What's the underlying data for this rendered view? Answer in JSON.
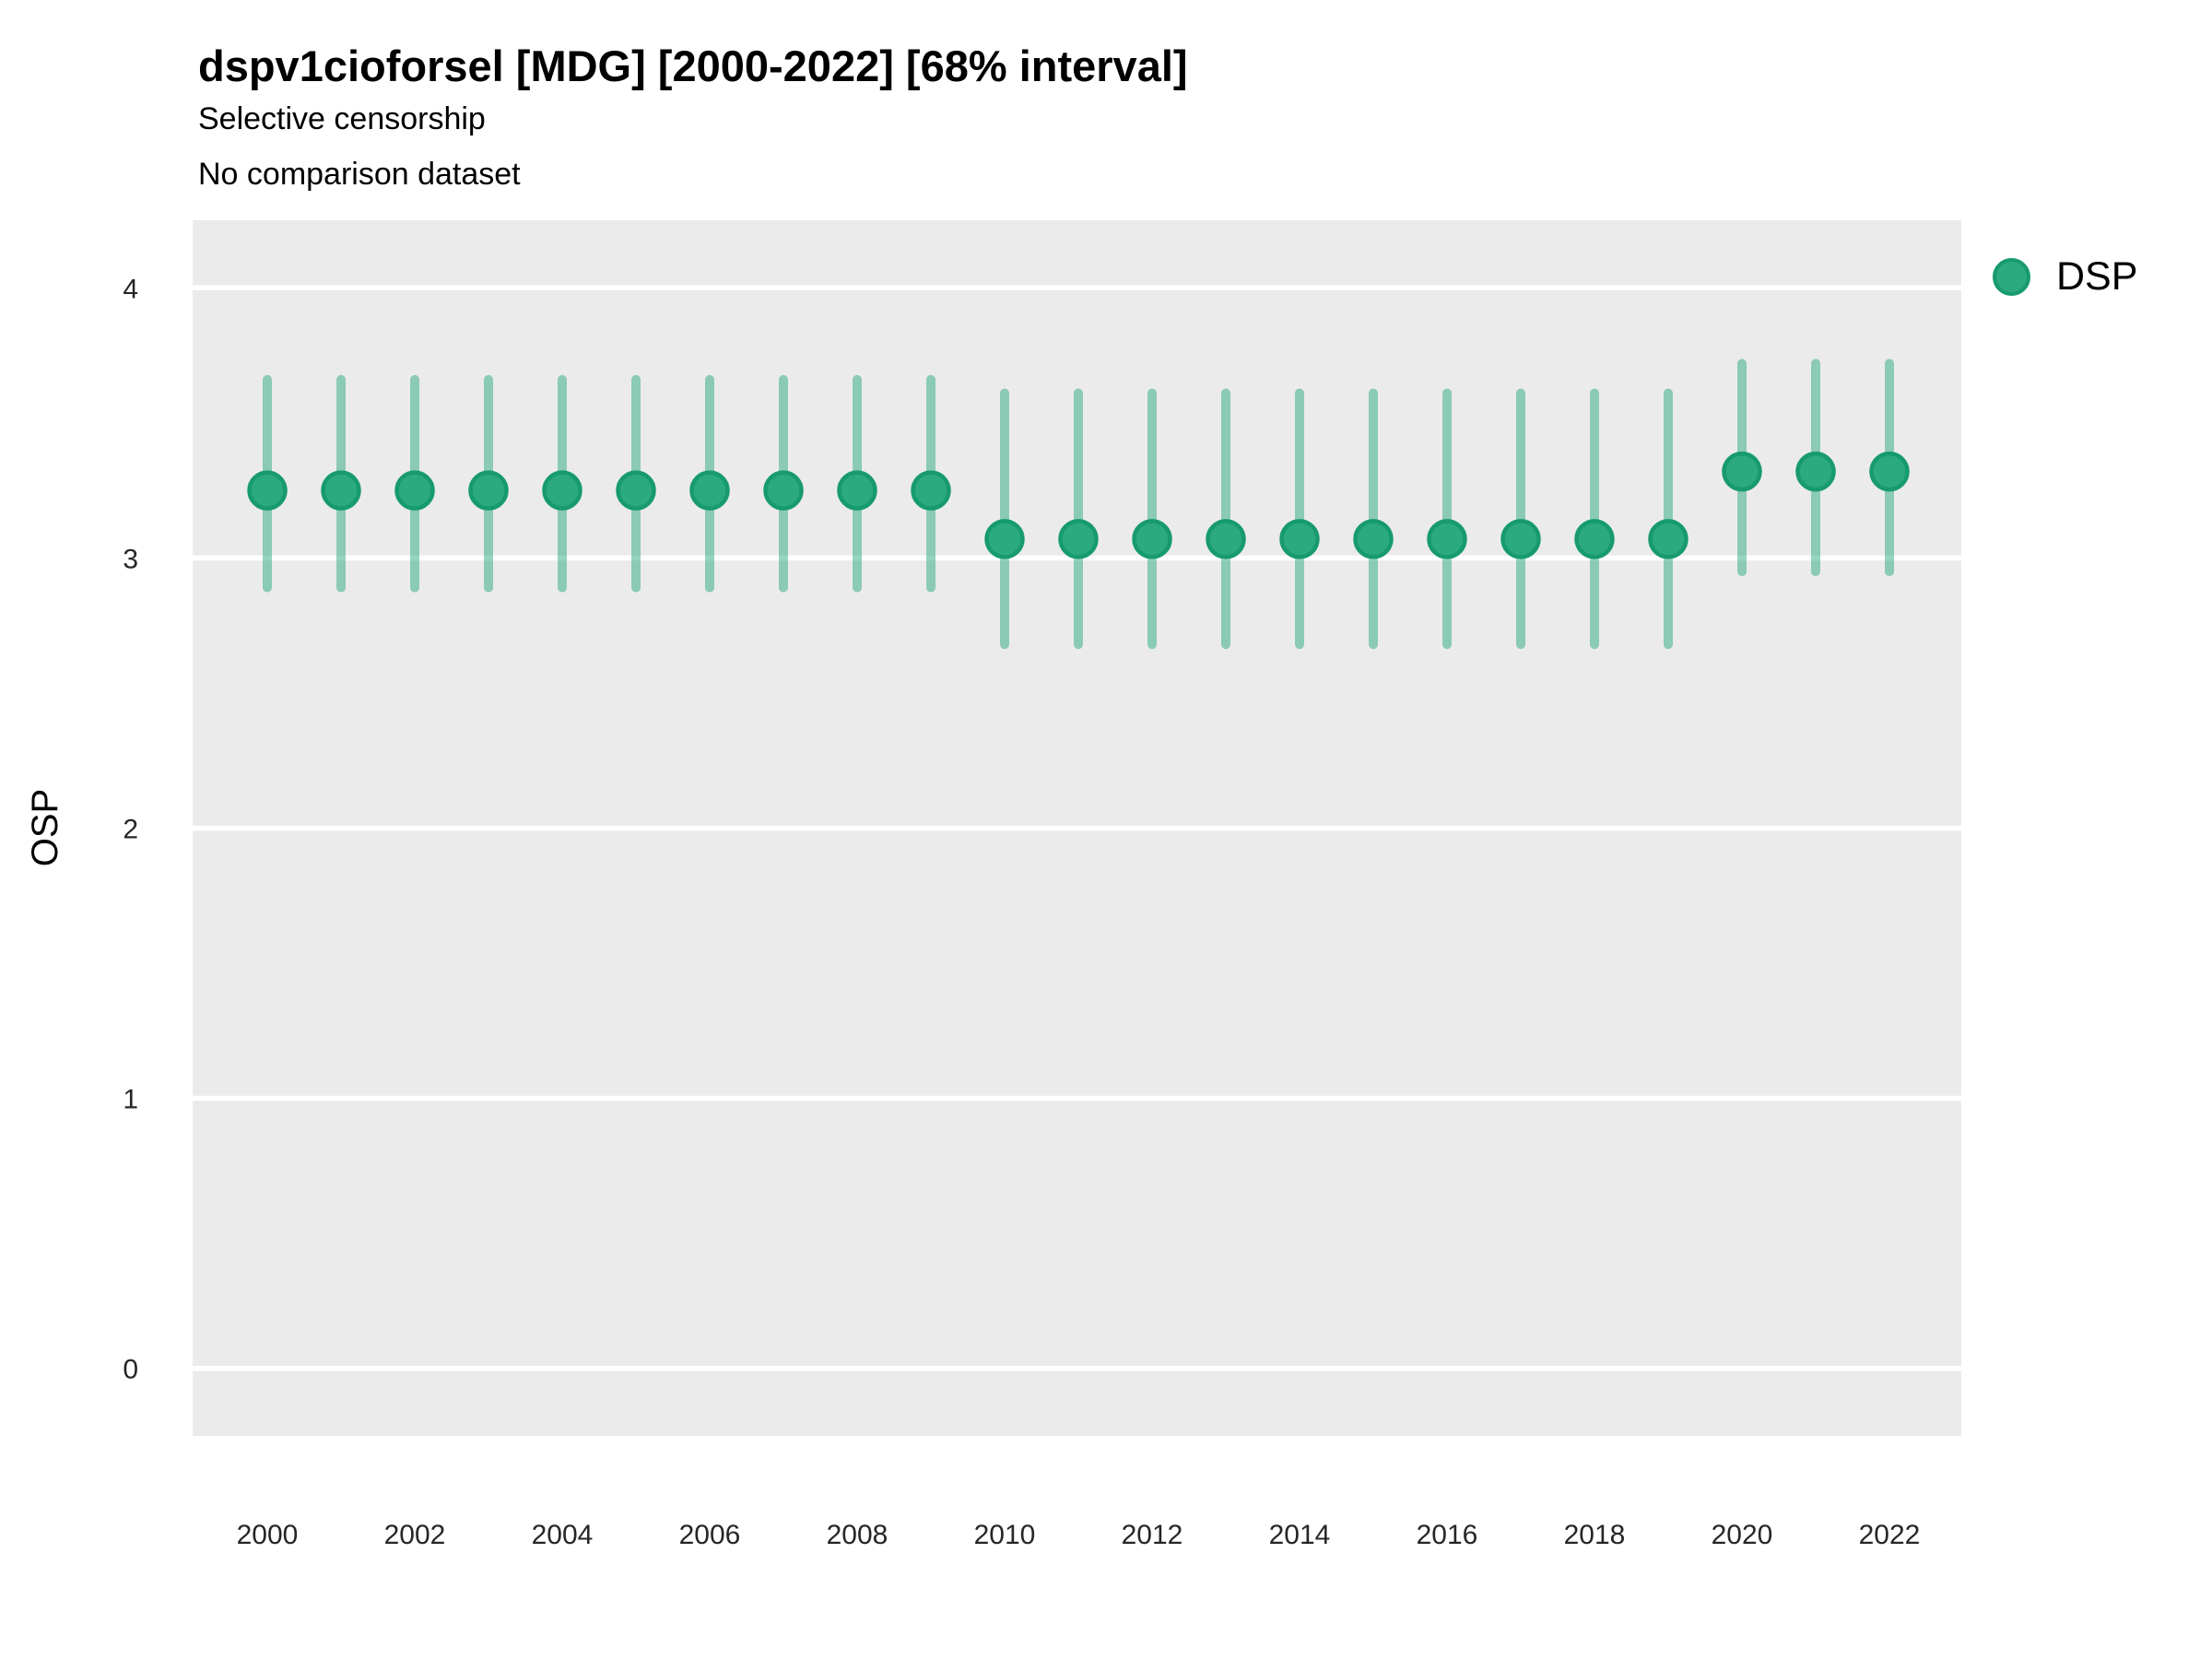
{
  "header": {
    "title": "dspv1cioforsel [MDG] [2000-2022] [68% interval]",
    "subtitle1": "Selective censorship",
    "subtitle2": "No comparison dataset"
  },
  "legend": {
    "label": "DSP"
  },
  "chart_data": {
    "type": "scatter",
    "title": "dspv1cioforsel [MDG] [2000-2022] [68% interval]",
    "subtitle": [
      "Selective censorship",
      "No comparison dataset"
    ],
    "xlabel": "",
    "ylabel": "OSP",
    "legend_entries": [
      {
        "name": "DSP",
        "color": "#2BA97F"
      }
    ],
    "legend_position": "right-top",
    "grid": "horizontal-major-only",
    "interval_label": "68% interval",
    "x": [
      2000,
      2001,
      2002,
      2003,
      2004,
      2005,
      2006,
      2007,
      2008,
      2009,
      2010,
      2011,
      2012,
      2013,
      2014,
      2015,
      2016,
      2017,
      2018,
      2019,
      2020,
      2021,
      2022
    ],
    "series": [
      {
        "name": "DSP",
        "values": [
          3.25,
          3.25,
          3.25,
          3.25,
          3.25,
          3.25,
          3.25,
          3.25,
          3.25,
          3.25,
          3.07,
          3.07,
          3.07,
          3.07,
          3.07,
          3.07,
          3.07,
          3.07,
          3.07,
          3.07,
          3.32,
          3.32,
          3.32
        ],
        "interval_low": [
          2.89,
          2.89,
          2.89,
          2.89,
          2.89,
          2.89,
          2.89,
          2.89,
          2.89,
          2.89,
          2.68,
          2.68,
          2.68,
          2.68,
          2.68,
          2.68,
          2.68,
          2.68,
          2.68,
          2.68,
          2.95,
          2.95,
          2.95
        ],
        "interval_high": [
          3.66,
          3.66,
          3.66,
          3.66,
          3.66,
          3.66,
          3.66,
          3.66,
          3.66,
          3.66,
          3.61,
          3.61,
          3.61,
          3.61,
          3.61,
          3.61,
          3.61,
          3.61,
          3.61,
          3.61,
          3.72,
          3.72,
          3.72
        ]
      }
    ],
    "x_ticks": [
      2000,
      2002,
      2004,
      2006,
      2008,
      2010,
      2012,
      2014,
      2016,
      2018,
      2020,
      2022
    ],
    "y_ticks": [
      0,
      1,
      2,
      3,
      4
    ],
    "ylim": [
      -0.25,
      4.25
    ],
    "colors": {
      "point_fill": "#2BA97F",
      "point_stroke": "#179A70",
      "interval_bar": "#2BA97F",
      "interval_opacity": 0.5,
      "panel_background": "#EBEBEB",
      "gridline": "#FFFFFF",
      "axis_text": "#262626",
      "title_text": "#000000"
    }
  }
}
